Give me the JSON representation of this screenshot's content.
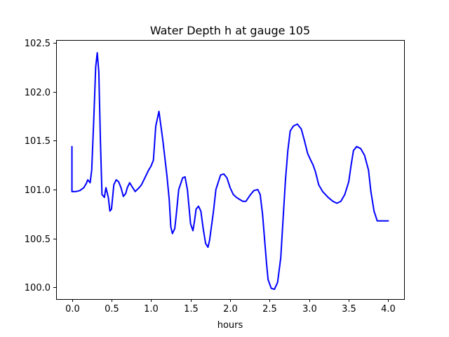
{
  "chart_data": {
    "type": "line",
    "title": "Water Depth h at gauge 105",
    "xlabel": "hours",
    "ylabel": "",
    "xlim": [
      -0.2,
      4.2
    ],
    "ylim": [
      99.88,
      102.53
    ],
    "xticks": [
      0.0,
      0.5,
      1.0,
      1.5,
      2.0,
      2.5,
      3.0,
      3.5,
      4.0
    ],
    "xtick_labels": [
      "0.0",
      "0.5",
      "1.0",
      "1.5",
      "2.0",
      "2.5",
      "3.0",
      "3.5",
      "4.0"
    ],
    "yticks": [
      100.0,
      100.5,
      101.0,
      101.5,
      102.0,
      102.5
    ],
    "ytick_labels": [
      "100.0",
      "100.5",
      "101.0",
      "101.5",
      "102.0",
      "102.5"
    ],
    "grid": false,
    "series": [
      {
        "color": "#0000ff",
        "x": [
          0.0,
          0.0,
          0.05,
          0.1,
          0.15,
          0.18,
          0.2,
          0.23,
          0.25,
          0.28,
          0.3,
          0.32,
          0.34,
          0.36,
          0.38,
          0.41,
          0.43,
          0.46,
          0.48,
          0.5,
          0.53,
          0.56,
          0.59,
          0.62,
          0.65,
          0.68,
          0.7,
          0.73,
          0.76,
          0.8,
          0.85,
          0.88,
          0.91,
          0.94,
          0.97,
          1.0,
          1.03,
          1.06,
          1.1,
          1.15,
          1.2,
          1.23,
          1.25,
          1.27,
          1.3,
          1.32,
          1.35,
          1.4,
          1.43,
          1.46,
          1.5,
          1.53,
          1.55,
          1.57,
          1.6,
          1.63,
          1.66,
          1.69,
          1.72,
          1.74,
          1.76,
          1.79,
          1.82,
          1.86,
          1.88,
          1.92,
          1.96,
          2.0,
          2.04,
          2.08,
          2.12,
          2.16,
          2.2,
          2.25,
          2.3,
          2.35,
          2.38,
          2.41,
          2.44,
          2.46,
          2.48,
          2.52,
          2.56,
          2.6,
          2.64,
          2.67,
          2.7,
          2.73,
          2.76,
          2.8,
          2.85,
          2.9,
          2.94,
          2.98,
          3.02,
          3.05,
          3.08,
          3.12,
          3.17,
          3.24,
          3.3,
          3.35,
          3.4,
          3.45,
          3.5,
          3.53,
          3.56,
          3.6,
          3.65,
          3.7,
          3.75,
          3.78,
          3.82,
          3.86,
          3.9,
          3.95,
          4.0
        ],
        "y": [
          101.44,
          100.98,
          100.98,
          100.99,
          101.02,
          101.06,
          101.1,
          101.07,
          101.2,
          101.8,
          102.25,
          102.4,
          102.2,
          101.5,
          100.95,
          100.92,
          101.02,
          100.92,
          100.78,
          100.8,
          101.05,
          101.1,
          101.08,
          101.02,
          100.93,
          100.96,
          101.02,
          101.07,
          101.03,
          100.98,
          101.02,
          101.05,
          101.1,
          101.15,
          101.2,
          101.24,
          101.3,
          101.65,
          101.8,
          101.5,
          101.15,
          100.9,
          100.62,
          100.55,
          100.6,
          100.75,
          101.0,
          101.12,
          101.13,
          101.0,
          100.65,
          100.58,
          100.68,
          100.8,
          100.83,
          100.78,
          100.6,
          100.45,
          100.41,
          100.48,
          100.6,
          100.78,
          101.0,
          101.1,
          101.15,
          101.16,
          101.12,
          101.02,
          100.95,
          100.92,
          100.9,
          100.88,
          100.88,
          100.94,
          100.99,
          101.0,
          100.95,
          100.75,
          100.45,
          100.25,
          100.08,
          99.99,
          99.98,
          100.05,
          100.3,
          100.7,
          101.1,
          101.4,
          101.6,
          101.65,
          101.67,
          101.62,
          101.5,
          101.37,
          101.3,
          101.25,
          101.18,
          101.05,
          100.98,
          100.92,
          100.88,
          100.86,
          100.88,
          100.95,
          101.08,
          101.25,
          101.4,
          101.44,
          101.42,
          101.35,
          101.2,
          100.98,
          100.78,
          100.68,
          100.68,
          100.68,
          100.68
        ]
      }
    ]
  }
}
